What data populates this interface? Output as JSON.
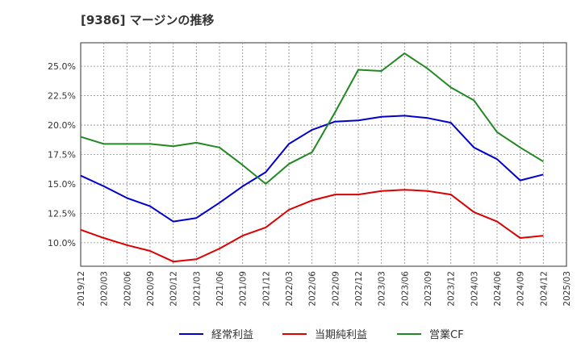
{
  "chart_data": {
    "type": "line",
    "title": "[9386]  マージンの推移",
    "x": [
      "2019/12",
      "2020/03",
      "2020/06",
      "2020/09",
      "2020/12",
      "2021/03",
      "2021/06",
      "2021/09",
      "2021/12",
      "2022/03",
      "2022/06",
      "2022/09",
      "2022/12",
      "2023/03",
      "2023/06",
      "2023/09",
      "2023/12",
      "2024/03",
      "2024/06",
      "2024/09",
      "2024/12",
      "2025/03"
    ],
    "y_ticks": [
      "10.0%",
      "12.5%",
      "15.0%",
      "17.5%",
      "20.0%",
      "22.5%",
      "25.0%"
    ],
    "ylim": [
      8.0,
      27.0
    ],
    "grid": true,
    "legend_position": "bottom",
    "series": [
      {
        "name": "経常利益",
        "color": "#0000cc",
        "values": [
          15.7,
          14.8,
          13.8,
          13.1,
          11.8,
          12.1,
          13.4,
          14.8,
          16.0,
          18.4,
          19.6,
          20.3,
          20.4,
          20.7,
          20.8,
          20.6,
          20.2,
          18.1,
          17.1,
          15.3,
          15.8,
          null
        ]
      },
      {
        "name": "当期純利益",
        "color": "#dd0000",
        "values": [
          11.1,
          10.4,
          9.8,
          9.3,
          8.4,
          8.6,
          9.5,
          10.6,
          11.3,
          12.8,
          13.6,
          14.1,
          14.1,
          14.4,
          14.5,
          14.4,
          14.1,
          12.6,
          11.8,
          10.4,
          10.6,
          null
        ]
      },
      {
        "name": "営業CF",
        "color": "#228822",
        "values": [
          19.0,
          18.4,
          18.4,
          18.4,
          18.2,
          18.5,
          18.1,
          16.6,
          15.0,
          16.7,
          17.7,
          21.1,
          24.7,
          24.6,
          26.1,
          24.8,
          23.2,
          22.1,
          19.4,
          18.1,
          16.9,
          null
        ]
      }
    ]
  }
}
